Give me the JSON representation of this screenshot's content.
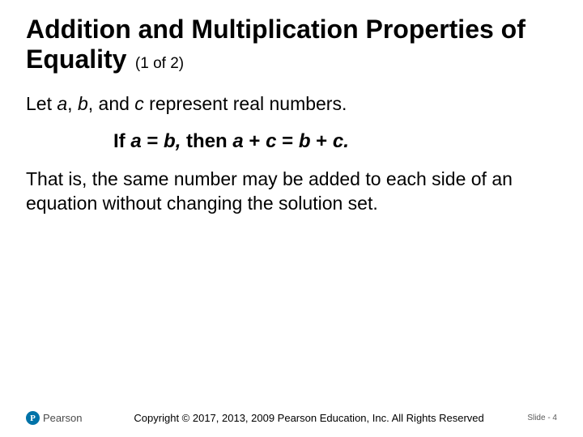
{
  "title": {
    "main": "Addition and Multiplication Properties of Equality",
    "sub": "(1 of 2)"
  },
  "intro": {
    "prefix": "Let ",
    "var_a": "a",
    "sep1": ", ",
    "var_b": "b",
    "sep2": ", and ",
    "var_c": "c",
    "suffix": " represent real numbers."
  },
  "statement": {
    "if_word": "If ",
    "a1": "a",
    "eq1": " = ",
    "b1": "b",
    "comma": ",",
    "then_word": " then ",
    "a2": "a",
    "plus1": " + ",
    "c1": "c",
    "eq2": " = ",
    "b2": "b",
    "plus2": " + ",
    "c2": "c",
    "period": "."
  },
  "explanation": "That is, the same number may be added to each side of an equation without changing the solution set.",
  "footer": {
    "logo_letter": "P",
    "logo_name": "Pearson",
    "copyright": "Copyright © 2017, 2013, 2009 Pearson Education, Inc. All Rights Reserved",
    "slide_label": "Slide - 4"
  },
  "colors": {
    "background": "#ffffff",
    "text": "#000000",
    "logo_bg": "#0073a8",
    "logo_text": "#4b4b4b",
    "slide_num": "#5a5a5a"
  },
  "typography": {
    "title_fontsize": 32,
    "title_sub_fontsize": 19,
    "body_fontsize": 23,
    "statement_fontsize": 24,
    "copyright_fontsize": 13,
    "slidenum_fontsize": 10,
    "font_family": "Arial"
  }
}
